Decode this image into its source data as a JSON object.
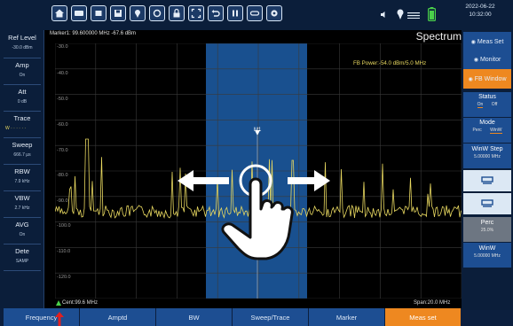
{
  "toolbar": {
    "icons": [
      "home-icon",
      "keyboard-icon",
      "stop-icon",
      "save-icon",
      "location-icon",
      "refresh-icon",
      "lock-icon",
      "fullscreen-icon",
      "undo-icon",
      "pause-icon",
      "link-icon",
      "settings-icon"
    ]
  },
  "tray": {
    "icons": [
      "volume-icon",
      "location-pin-icon",
      "menu-icon",
      "battery-icon"
    ],
    "date": "2022-06-22",
    "time": "10:32:00"
  },
  "left_panel": [
    {
      "label": "Ref Level",
      "value": "-30.0 dBm"
    },
    {
      "label": "Amp",
      "value": "On"
    },
    {
      "label": "Att",
      "value": "0 dB"
    },
    {
      "label": "Trace",
      "value": "W · · · · · ·"
    },
    {
      "label": "Sweep",
      "value": "666.7 μs"
    },
    {
      "label": "RBW",
      "value": "7.9 kHz"
    },
    {
      "label": "VBW",
      "value": "2.7 kHz"
    },
    {
      "label": "AVG",
      "value": "On"
    },
    {
      "label": "Dete",
      "value": "SAMP"
    }
  ],
  "marker_readout": "Marker1:  99.600000 MHz  -67.6 dBm",
  "title": "Spectrum",
  "fb_power": "FB Power:-54.0 dBm/5.0 MHz",
  "marker_label": "M1",
  "y_ticks": [
    "-30.0",
    "-40.0",
    "-50.0",
    "-60.0",
    "-70.0",
    "-80.0",
    "-90.0",
    "-100.0",
    "-110.0",
    "-120.0"
  ],
  "center": "Cent:99.6 MHz",
  "span": "Span:20.0 MHz",
  "bottom_menu": [
    {
      "label": "Frequency",
      "active": false
    },
    {
      "label": "Amptd",
      "active": false
    },
    {
      "label": "BW",
      "active": false
    },
    {
      "label": "Sweep/Trace",
      "active": false
    },
    {
      "label": "Marker",
      "active": false
    },
    {
      "label": "Meas set",
      "active": true
    }
  ],
  "right_panel": {
    "meas_set": "Meas Set",
    "monitor": "Monitor",
    "fb_window": "FB Window",
    "status": {
      "label": "Status",
      "on": "On",
      "off": "Off"
    },
    "mode": {
      "label": "Mode",
      "perc": "Perc",
      "winw": "WinW"
    },
    "winw_step": {
      "label": "WinW Step",
      "value": "5.00000 MHz"
    },
    "perc": {
      "label": "Perc",
      "value": "25.0%"
    },
    "winw": {
      "label": "WinW",
      "value": "5.00000 MHz"
    }
  },
  "colors": {
    "accent": "#ee8820",
    "button": "#1d4e92",
    "trace": "#e8d860",
    "window": "#1d5ea8"
  }
}
